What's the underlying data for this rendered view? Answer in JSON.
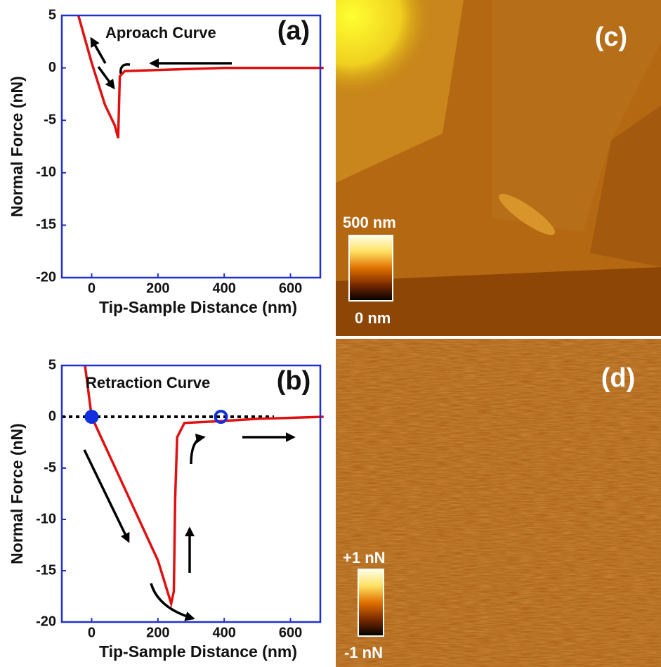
{
  "chart_data": [
    {
      "type": "line",
      "panel_label": "(a)",
      "annotation": "Aproach Curve",
      "xlabel": "Tip-Sample Distance (nm)",
      "ylabel": "Normal Force (nN)",
      "x": [
        -40,
        0,
        40,
        70,
        80,
        85,
        100,
        200,
        400,
        700
      ],
      "values": [
        5,
        0.5,
        -3.5,
        -5.5,
        -6.7,
        -0.8,
        -0.3,
        -0.2,
        0,
        0
      ],
      "color": "#e01010",
      "xlim": [
        -90,
        690
      ],
      "ylim": [
        -20,
        5
      ],
      "xticks": [
        0,
        200,
        400,
        600
      ],
      "yticks": [
        5,
        0,
        -5,
        -10,
        -15,
        -20
      ]
    },
    {
      "type": "line",
      "panel_label": "(b)",
      "annotation": "Retraction Curve",
      "xlabel": "Tip-Sample Distance (nm)",
      "ylabel": "Normal Force (nN)",
      "x": [
        -20,
        0,
        100,
        200,
        240,
        248,
        252,
        258,
        280,
        400,
        500,
        700
      ],
      "values": [
        5,
        0,
        -7,
        -14,
        -18.2,
        -17,
        -8,
        -2,
        -0.6,
        -0.4,
        -0.2,
        0
      ],
      "color": "#e01010",
      "hline": 0,
      "markers": [
        {
          "x": 0,
          "y": 0,
          "style": "filled"
        },
        {
          "x": 390,
          "y": 0,
          "style": "open"
        }
      ],
      "marker_color": "#1030e0",
      "xlim": [
        -90,
        690
      ],
      "ylim": [
        -20,
        5
      ],
      "xticks": [
        0,
        200,
        400,
        600
      ],
      "yticks": [
        5,
        0,
        -5,
        -10,
        -15,
        -20
      ]
    }
  ],
  "images": [
    {
      "panel_label": "(c)",
      "colorbar_max_label": "500 nm",
      "colorbar_min_label": "0 nm"
    },
    {
      "panel_label": "(d)",
      "colorbar_max_label": "+1 nN",
      "colorbar_min_label": "-1 nN"
    }
  ]
}
